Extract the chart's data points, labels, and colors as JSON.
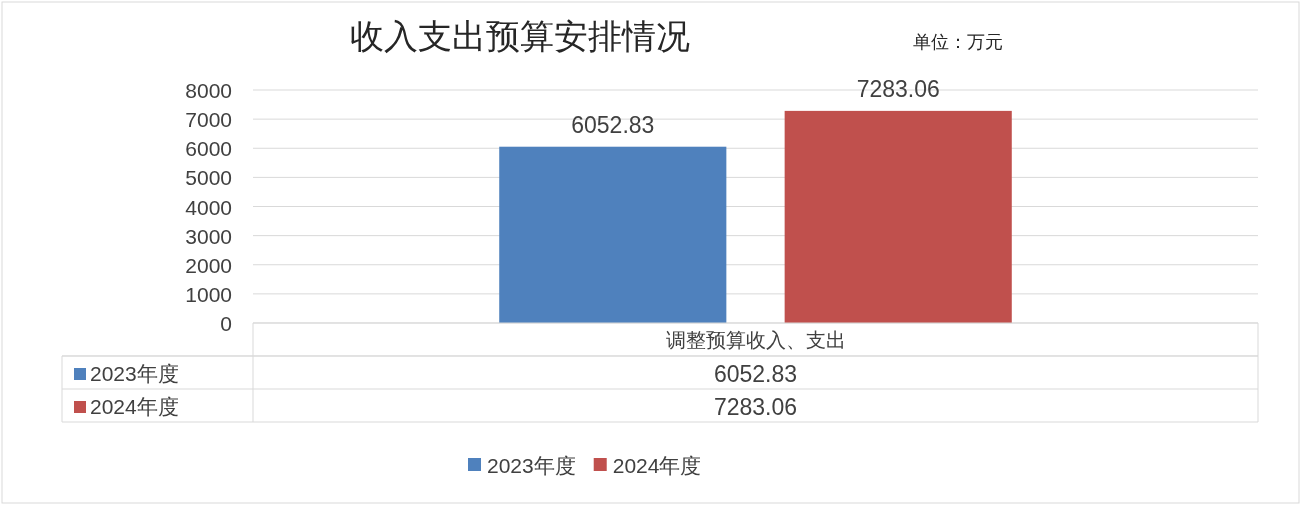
{
  "chart_data": {
    "type": "bar",
    "title": "收入支出预算安排情况",
    "subtitle": "单位：万元",
    "categories": [
      "调整预算收入、支出"
    ],
    "series": [
      {
        "name": "2023年度",
        "color": "#4f81bd",
        "values": [
          6052.83
        ]
      },
      {
        "name": "2024年度",
        "color": "#c0504d",
        "values": [
          7283.06
        ]
      }
    ],
    "annotations": [
      "6052.83",
      "7283.06"
    ],
    "ylim": [
      0,
      8000
    ],
    "yticks": [
      0,
      1000,
      2000,
      3000,
      4000,
      5000,
      6000,
      7000,
      8000
    ],
    "grid": "y",
    "data_labels": true,
    "legend": "bottom"
  }
}
